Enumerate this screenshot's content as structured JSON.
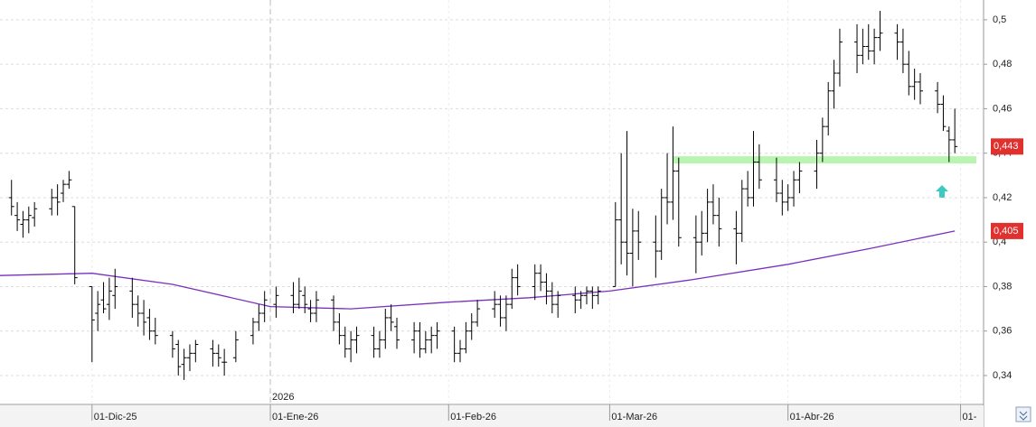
{
  "chart_data": {
    "type": "ohlc",
    "x": [
      "2025-11-17",
      "2025-11-18",
      "2025-11-19",
      "2025-11-20",
      "2025-11-21",
      "2025-11-24",
      "2025-11-25",
      "2025-11-26",
      "2025-11-27",
      "2025-11-28",
      "2025-12-01",
      "2025-12-02",
      "2025-12-03",
      "2025-12-04",
      "2025-12-05",
      "2025-12-08",
      "2025-12-09",
      "2025-12-10",
      "2025-12-11",
      "2025-12-12",
      "2025-12-15",
      "2025-12-16",
      "2025-12-17",
      "2025-12-18",
      "2025-12-19",
      "2025-12-22",
      "2025-12-23",
      "2025-12-24",
      "2025-12-26",
      "2025-12-29",
      "2025-12-30",
      "2025-12-31",
      "2026-01-02",
      "2026-01-05",
      "2026-01-06",
      "2026-01-07",
      "2026-01-08",
      "2026-01-09",
      "2026-01-12",
      "2026-01-13",
      "2026-01-14",
      "2026-01-15",
      "2026-01-16",
      "2026-01-19",
      "2026-01-20",
      "2026-01-21",
      "2026-01-22",
      "2026-01-23",
      "2026-01-26",
      "2026-01-27",
      "2026-01-28",
      "2026-01-29",
      "2026-01-30",
      "2026-02-02",
      "2026-02-03",
      "2026-02-04",
      "2026-02-05",
      "2026-02-06",
      "2026-02-09",
      "2026-02-10",
      "2026-02-11",
      "2026-02-12",
      "2026-02-13",
      "2026-02-16",
      "2026-02-17",
      "2026-02-18",
      "2026-02-19",
      "2026-02-20",
      "2026-02-23",
      "2026-02-24",
      "2026-02-25",
      "2026-02-26",
      "2026-02-27",
      "2026-03-02",
      "2026-03-03",
      "2026-03-04",
      "2026-03-05",
      "2026-03-06",
      "2026-03-09",
      "2026-03-10",
      "2026-03-11",
      "2026-03-12",
      "2026-03-13",
      "2026-03-16",
      "2026-03-17",
      "2026-03-18",
      "2026-03-19",
      "2026-03-20",
      "2026-03-23",
      "2026-03-24",
      "2026-03-25",
      "2026-03-26",
      "2026-03-27",
      "2026-03-30",
      "2026-03-31",
      "2026-04-01",
      "2026-04-02",
      "2026-04-03",
      "2026-04-06",
      "2026-04-07",
      "2026-04-08",
      "2026-04-09",
      "2026-04-10",
      "2026-04-13",
      "2026-04-14",
      "2026-04-15",
      "2026-04-16",
      "2026-04-17",
      "2026-04-20",
      "2026-04-21",
      "2026-04-22",
      "2026-04-23",
      "2026-04-24",
      "2026-04-27",
      "2026-04-28",
      "2026-04-29",
      "2026-04-30"
    ],
    "ohlc": [
      [
        0.42,
        0.428,
        0.412,
        0.416
      ],
      [
        0.412,
        0.418,
        0.405,
        0.41
      ],
      [
        0.408,
        0.414,
        0.402,
        0.41
      ],
      [
        0.41,
        0.416,
        0.404,
        0.412
      ],
      [
        0.411,
        0.418,
        0.407,
        0.415
      ],
      [
        0.415,
        0.424,
        0.412,
        0.42
      ],
      [
        0.42,
        0.426,
        0.412,
        0.418
      ],
      [
        0.422,
        0.428,
        0.418,
        0.426
      ],
      [
        0.426,
        0.432,
        0.424,
        0.428
      ],
      [
        0.416,
        0.416,
        0.381,
        0.384
      ],
      [
        0.38,
        0.38,
        0.346,
        0.365
      ],
      [
        0.368,
        0.378,
        0.36,
        0.372
      ],
      [
        0.374,
        0.382,
        0.368,
        0.37
      ],
      [
        0.372,
        0.384,
        0.365,
        0.378
      ],
      [
        0.376,
        0.388,
        0.37,
        0.38
      ],
      [
        0.378,
        0.384,
        0.366,
        0.372
      ],
      [
        0.372,
        0.376,
        0.362,
        0.368
      ],
      [
        0.368,
        0.374,
        0.358,
        0.364
      ],
      [
        0.366,
        0.37,
        0.356,
        0.36
      ],
      [
        0.36,
        0.366,
        0.354,
        0.358
      ],
      [
        0.358,
        0.36,
        0.348,
        0.352
      ],
      [
        0.354,
        0.356,
        0.34,
        0.344
      ],
      [
        0.345,
        0.352,
        0.338,
        0.348
      ],
      [
        0.348,
        0.354,
        0.342,
        0.35
      ],
      [
        0.35,
        0.356,
        0.346,
        0.354
      ],
      [
        0.352,
        0.356,
        0.344,
        0.35
      ],
      [
        0.35,
        0.354,
        0.344,
        0.348
      ],
      [
        0.346,
        0.352,
        0.34,
        0.346
      ],
      [
        0.348,
        0.36,
        0.346,
        0.356
      ],
      [
        0.358,
        0.366,
        0.354,
        0.364
      ],
      [
        0.364,
        0.372,
        0.36,
        0.368
      ],
      [
        0.368,
        0.378,
        0.364,
        0.374
      ],
      [
        0.372,
        0.38,
        0.366,
        0.376
      ],
      [
        0.376,
        0.382,
        0.368,
        0.372
      ],
      [
        0.372,
        0.384,
        0.37,
        0.378
      ],
      [
        0.376,
        0.38,
        0.368,
        0.372
      ],
      [
        0.37,
        0.374,
        0.364,
        0.368
      ],
      [
        0.368,
        0.378,
        0.364,
        0.374
      ],
      [
        0.374,
        0.376,
        0.36,
        0.364
      ],
      [
        0.364,
        0.368,
        0.354,
        0.358
      ],
      [
        0.358,
        0.362,
        0.348,
        0.352
      ],
      [
        0.352,
        0.36,
        0.346,
        0.356
      ],
      [
        0.356,
        0.362,
        0.35,
        0.358
      ],
      [
        0.358,
        0.362,
        0.348,
        0.352
      ],
      [
        0.352,
        0.36,
        0.348,
        0.356
      ],
      [
        0.356,
        0.37,
        0.352,
        0.366
      ],
      [
        0.366,
        0.372,
        0.36,
        0.364
      ],
      [
        0.362,
        0.366,
        0.352,
        0.356
      ],
      [
        0.356,
        0.364,
        0.35,
        0.36
      ],
      [
        0.36,
        0.364,
        0.348,
        0.352
      ],
      [
        0.352,
        0.36,
        0.35,
        0.356
      ],
      [
        0.356,
        0.362,
        0.35,
        0.358
      ],
      [
        0.358,
        0.364,
        0.352,
        0.36
      ],
      [
        0.36,
        0.362,
        0.346,
        0.35
      ],
      [
        0.35,
        0.356,
        0.346,
        0.352
      ],
      [
        0.352,
        0.364,
        0.35,
        0.36
      ],
      [
        0.36,
        0.368,
        0.356,
        0.364
      ],
      [
        0.364,
        0.374,
        0.362,
        0.37
      ],
      [
        0.37,
        0.378,
        0.366,
        0.372
      ],
      [
        0.372,
        0.376,
        0.362,
        0.366
      ],
      [
        0.366,
        0.376,
        0.36,
        0.372
      ],
      [
        0.372,
        0.388,
        0.37,
        0.384
      ],
      [
        0.384,
        0.39,
        0.376,
        0.38
      ],
      [
        0.38,
        0.39,
        0.374,
        0.386
      ],
      [
        0.386,
        0.39,
        0.378,
        0.382
      ],
      [
        0.382,
        0.386,
        0.372,
        0.378
      ],
      [
        0.378,
        0.382,
        0.368,
        0.372
      ],
      [
        0.372,
        0.378,
        0.366,
        0.376
      ],
      [
        0.376,
        0.38,
        0.368,
        0.374
      ],
      [
        0.374,
        0.378,
        0.37,
        0.376
      ],
      [
        0.376,
        0.38,
        0.372,
        0.378
      ],
      [
        0.378,
        0.38,
        0.37,
        0.376
      ],
      [
        0.376,
        0.38,
        0.372,
        0.378
      ],
      [
        0.38,
        0.418,
        0.38,
        0.41
      ],
      [
        0.41,
        0.44,
        0.39,
        0.4
      ],
      [
        0.4,
        0.45,
        0.385,
        0.395
      ],
      [
        0.395,
        0.415,
        0.38,
        0.405
      ],
      [
        0.405,
        0.414,
        0.392,
        0.4
      ],
      [
        0.4,
        0.412,
        0.384,
        0.396
      ],
      [
        0.396,
        0.424,
        0.392,
        0.42
      ],
      [
        0.42,
        0.44,
        0.408,
        0.418
      ],
      [
        0.418,
        0.452,
        0.41,
        0.432
      ],
      [
        0.432,
        0.438,
        0.398,
        0.402
      ],
      [
        0.402,
        0.412,
        0.386,
        0.4
      ],
      [
        0.4,
        0.414,
        0.394,
        0.404
      ],
      [
        0.404,
        0.424,
        0.4,
        0.418
      ],
      [
        0.418,
        0.426,
        0.408,
        0.412
      ],
      [
        0.412,
        0.42,
        0.398,
        0.406
      ],
      [
        0.406,
        0.414,
        0.39,
        0.404
      ],
      [
        0.404,
        0.428,
        0.4,
        0.424
      ],
      [
        0.424,
        0.432,
        0.416,
        0.42
      ],
      [
        0.42,
        0.45,
        0.416,
        0.436
      ],
      [
        0.436,
        0.444,
        0.424,
        0.428
      ],
      [
        0.428,
        0.438,
        0.418,
        0.422
      ],
      [
        0.422,
        0.428,
        0.412,
        0.418
      ],
      [
        0.418,
        0.426,
        0.414,
        0.42
      ],
      [
        0.42,
        0.432,
        0.416,
        0.428
      ],
      [
        0.428,
        0.436,
        0.422,
        0.432
      ],
      [
        0.432,
        0.446,
        0.424,
        0.44
      ],
      [
        0.44,
        0.456,
        0.436,
        0.452
      ],
      [
        0.452,
        0.472,
        0.448,
        0.468
      ],
      [
        0.468,
        0.482,
        0.46,
        0.476
      ],
      [
        0.476,
        0.496,
        0.47,
        0.49
      ],
      [
        0.49,
        0.498,
        0.476,
        0.484
      ],
      [
        0.484,
        0.496,
        0.48,
        0.488
      ],
      [
        0.488,
        0.498,
        0.482,
        0.486
      ],
      [
        0.486,
        0.496,
        0.48,
        0.492
      ],
      [
        0.492,
        0.504,
        0.486,
        0.494
      ],
      [
        0.494,
        0.498,
        0.482,
        0.49
      ],
      [
        0.49,
        0.496,
        0.476,
        0.48
      ],
      [
        0.48,
        0.486,
        0.466,
        0.47
      ],
      [
        0.47,
        0.478,
        0.464,
        0.472
      ],
      [
        0.472,
        0.476,
        0.462,
        0.468
      ],
      [
        0.468,
        0.472,
        0.458,
        0.462
      ],
      [
        0.462,
        0.466,
        0.45,
        0.452
      ],
      [
        0.45,
        0.452,
        0.436,
        0.446
      ],
      [
        0.446,
        0.46,
        0.44,
        0.443
      ]
    ],
    "bar_color": "#000000",
    "series": [
      {
        "color": "#7b2fbe",
        "x": [
          "2025-11-15",
          "2025-12-01",
          "2025-12-15",
          "2026-01-01",
          "2026-01-15",
          "2026-02-01",
          "2026-02-15",
          "2026-03-01",
          "2026-03-15",
          "2026-04-01",
          "2026-04-15",
          "2026-04-30"
        ],
        "values": [
          0.385,
          0.386,
          0.381,
          0.371,
          0.37,
          0.373,
          0.375,
          0.378,
          0.383,
          0.39,
          0.397,
          0.405
        ]
      }
    ],
    "support": {
      "value": 0.437,
      "from": "2026-03-12",
      "color": "#b8f5b0"
    },
    "price_labels": [
      {
        "value": 0.443,
        "label": "0,443"
      },
      {
        "value": 0.405,
        "label": "0,405"
      }
    ],
    "xlim": [
      "2025-11-15",
      "2026-05-05"
    ],
    "xticks": [
      {
        "value": "2025-12-01",
        "label": "01-Dic-25"
      },
      {
        "value": "2026-01-01",
        "label": "01-Ene-26"
      },
      {
        "value": "2026-02-01",
        "label": "01-Feb-26"
      },
      {
        "value": "2026-03-01",
        "label": "01-Mar-26"
      },
      {
        "value": "2026-04-01",
        "label": "01-Abr-26"
      },
      {
        "value": "2026-05-01",
        "label": "01-"
      }
    ],
    "year_marker": {
      "value": "2026-01-01",
      "label": "2026"
    },
    "ylim": [
      0.327,
      0.5089
    ],
    "yticks": [
      {
        "value": 0.34,
        "label": "0,34"
      },
      {
        "value": 0.36,
        "label": "0,36"
      },
      {
        "value": 0.38,
        "label": "0,38"
      },
      {
        "value": 0.4,
        "label": "0,4"
      },
      {
        "value": 0.42,
        "label": "0,42"
      },
      {
        "value": 0.44,
        "label": "0,44"
      },
      {
        "value": 0.46,
        "label": "0,46"
      },
      {
        "value": 0.48,
        "label": "0,48"
      },
      {
        "value": 0.5,
        "label": "0,5"
      }
    ],
    "grid": true
  }
}
